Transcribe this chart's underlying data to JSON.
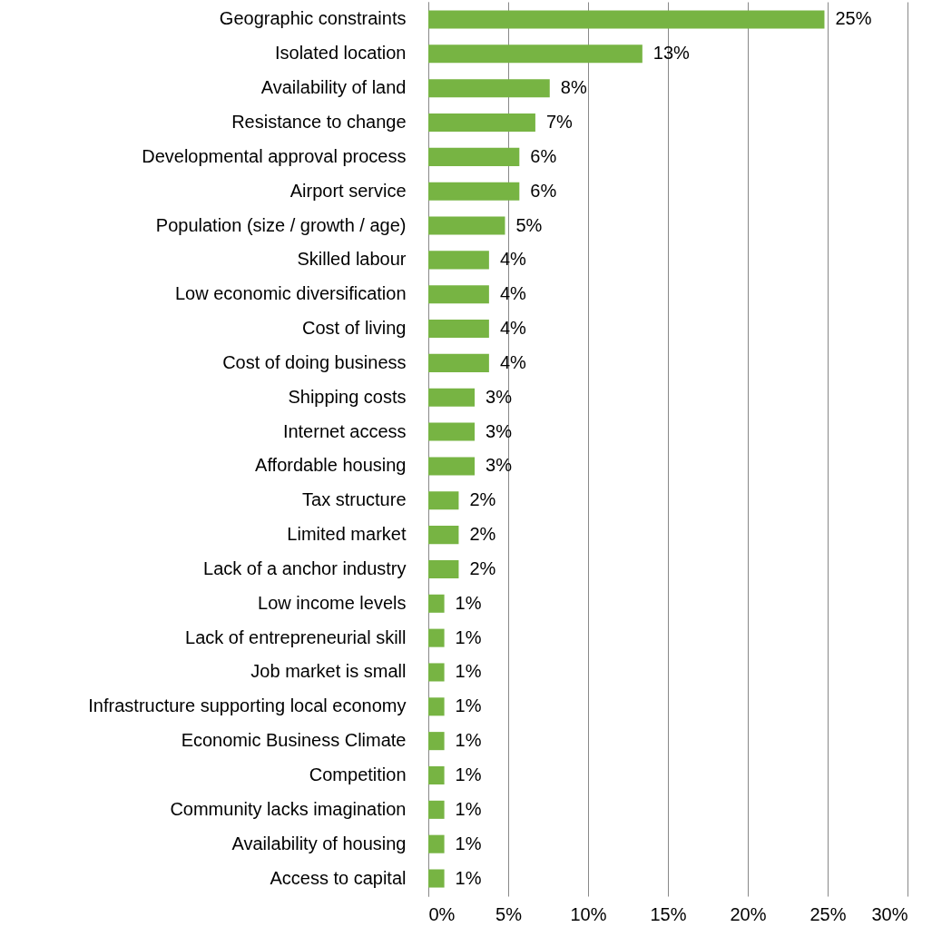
{
  "chart_data": {
    "type": "bar",
    "orientation": "horizontal",
    "categories": [
      "Geographic constraints",
      "Isolated location",
      "Availability of land",
      "Resistance to change",
      "Developmental approval process",
      "Airport service",
      "Population (size / growth / age)",
      "Skilled labour",
      "Low economic diversification",
      "Cost of living",
      "Cost of doing business",
      "Shipping costs",
      "Internet access",
      "Affordable housing",
      "Tax structure",
      "Limited market",
      "Lack of a anchor industry",
      "Low income levels",
      "Lack of entrepreneurial skill",
      "Job market is small",
      "Infrastructure supporting local economy",
      "Economic Business Climate",
      "Competition",
      "Community lacks imagination",
      "Availability of housing",
      "Access to capital"
    ],
    "values": [
      24.8,
      13.4,
      7.6,
      6.7,
      5.7,
      5.7,
      4.8,
      3.8,
      3.8,
      3.8,
      3.8,
      2.9,
      2.9,
      2.9,
      1.9,
      1.9,
      1.9,
      1.0,
      1.0,
      1.0,
      1.0,
      1.0,
      1.0,
      1.0,
      1.0,
      1.0
    ],
    "value_labels": [
      "25%",
      "13%",
      "8%",
      "7%",
      "6%",
      "6%",
      "5%",
      "4%",
      "4%",
      "4%",
      "4%",
      "3%",
      "3%",
      "3%",
      "2%",
      "2%",
      "2%",
      "1%",
      "1%",
      "1%",
      "1%",
      "1%",
      "1%",
      "1%",
      "1%",
      "1%"
    ],
    "color": "#77b443",
    "xlim": [
      0,
      30
    ],
    "xticks": [
      {
        "value": 0,
        "label": "0%"
      },
      {
        "value": 5,
        "label": "5%"
      },
      {
        "value": 10,
        "label": "10%"
      },
      {
        "value": 15,
        "label": "15%"
      },
      {
        "value": 20,
        "label": "20%"
      },
      {
        "value": 25,
        "label": "25%"
      },
      {
        "value": 30,
        "label": "30%"
      }
    ],
    "grid": "x"
  }
}
